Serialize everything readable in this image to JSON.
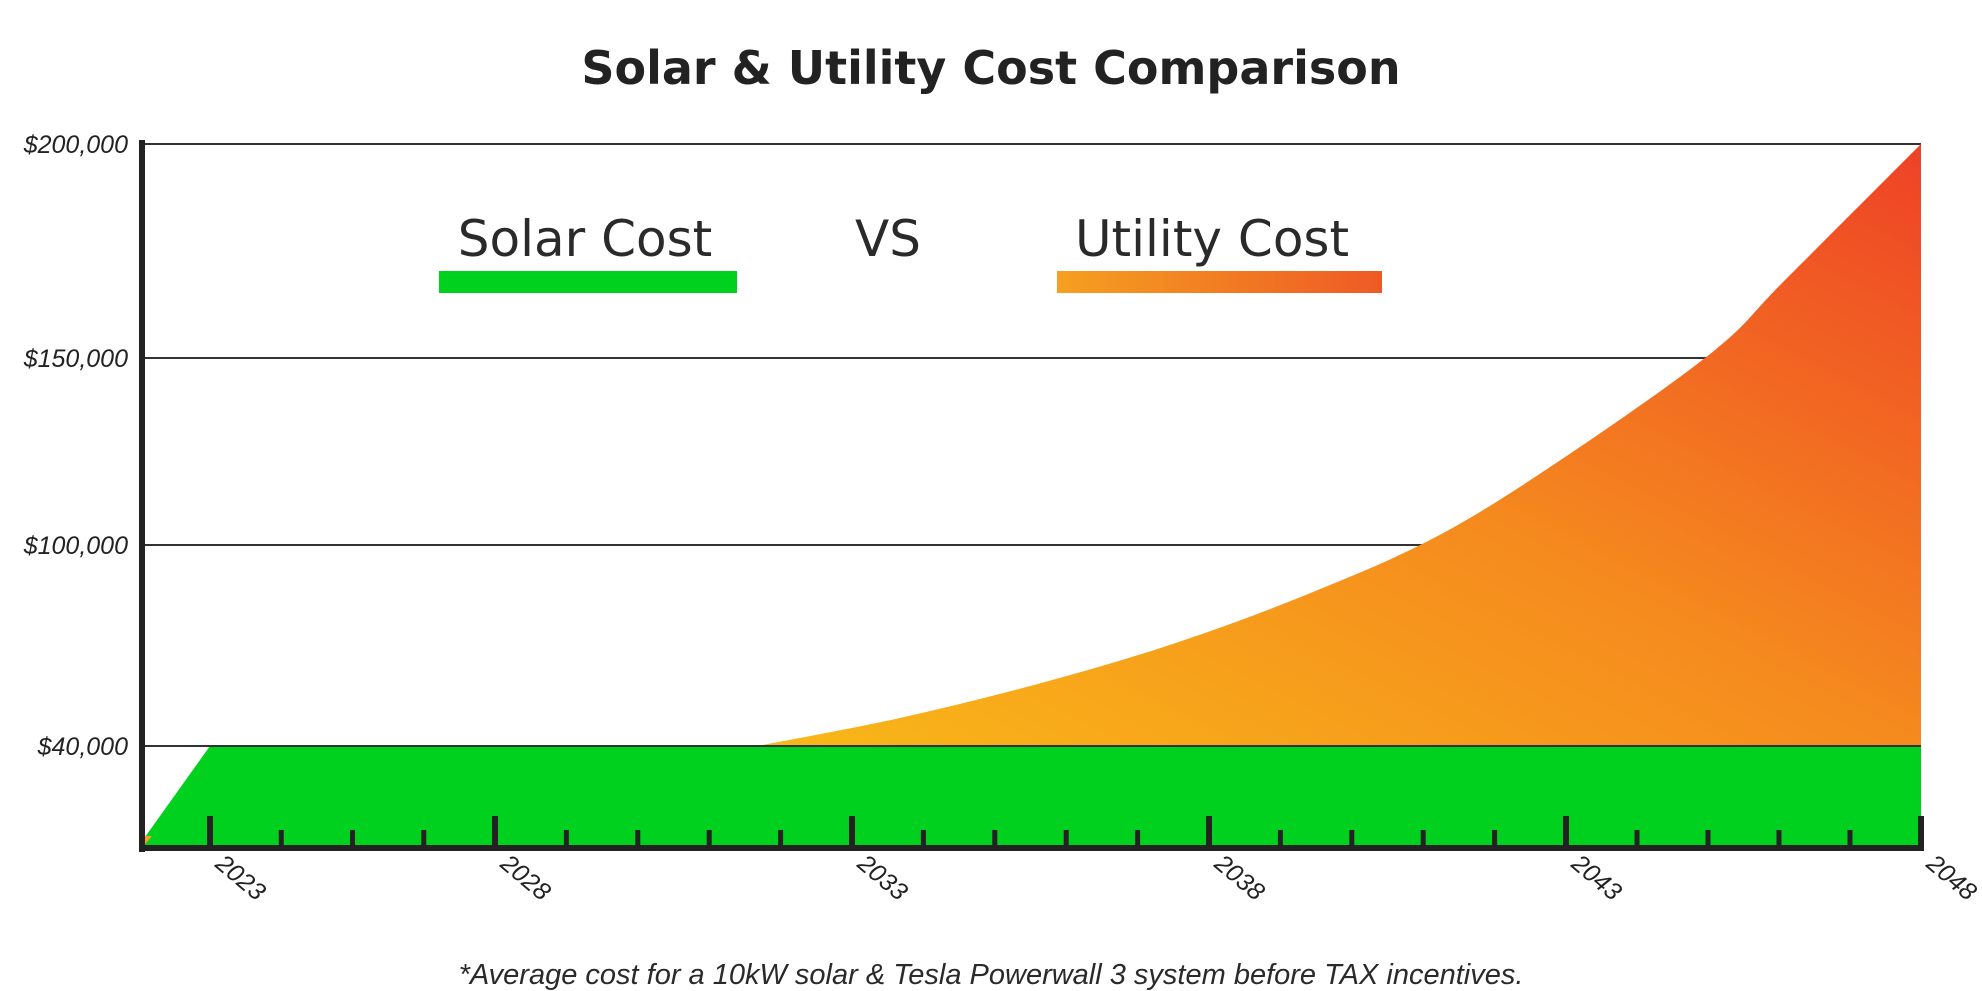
{
  "chart_data": {
    "type": "area",
    "title": "Solar & Utility Cost Comparison",
    "footnote": "*Average cost for a 10kW solar & Tesla Powerwall 3 system before TAX incentives.",
    "legend": {
      "placement": "top-center",
      "items": [
        {
          "label": "Solar Cost",
          "color": "#00d01e"
        },
        {
          "label": "VS"
        },
        {
          "label": "Utility Cost",
          "color": "#f5a020",
          "color_end": "#ee4425"
        }
      ]
    },
    "x_ticks": [
      {
        "value": 2023,
        "label": "2023"
      },
      {
        "value": 2028,
        "label": "2028"
      },
      {
        "value": 2033,
        "label": "2033"
      },
      {
        "value": 2038,
        "label": "2038"
      },
      {
        "value": 2043,
        "label": "2043"
      },
      {
        "value": 2048,
        "label": "2048"
      }
    ],
    "xlim": [
      2022,
      2048
    ],
    "y_ticks": [
      {
        "value": 40000,
        "label": "$40,000"
      },
      {
        "value": 100000,
        "label": "$100,000"
      },
      {
        "value": 150000,
        "label": "$150,000"
      },
      {
        "value": 200000,
        "label": "$200,000"
      }
    ],
    "ylim": [
      10000,
      200000
    ],
    "grid": true,
    "series": [
      {
        "name": "Solar Cost",
        "color": "#00d01e",
        "x": [
          2022,
          2023,
          2048
        ],
        "values": [
          12000,
          40000,
          40000
        ]
      },
      {
        "name": "Utility Cost",
        "color": "#f5a020",
        "color_end": "#ee4425",
        "x": [
          2031,
          2033,
          2035,
          2037,
          2039,
          2041,
          2043,
          2045,
          2046,
          2048
        ],
        "values": [
          40000,
          48000,
          58000,
          70000,
          85000,
          103000,
          126000,
          152000,
          168000,
          200000
        ]
      }
    ]
  }
}
